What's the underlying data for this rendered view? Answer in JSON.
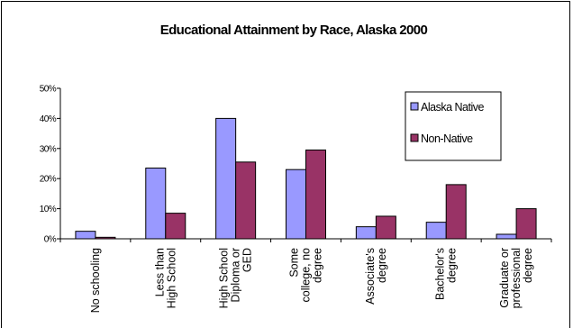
{
  "chart_data": {
    "type": "bar",
    "title": "Educational Attainment by Race, Alaska 2000",
    "xlabel": "",
    "ylabel": "",
    "ylim": [
      0,
      50
    ],
    "yticks": [
      "0%",
      "10%",
      "20%",
      "30%",
      "40%",
      "50%"
    ],
    "grid": false,
    "legend_position": "top-right",
    "categories": [
      [
        "No schooling"
      ],
      [
        "Less than",
        "High School"
      ],
      [
        "High School",
        "Diploma or",
        "GED"
      ],
      [
        "Some",
        "college, no",
        "degree"
      ],
      [
        "Associate's",
        "degree"
      ],
      [
        "Bachelor's",
        "degree"
      ],
      [
        "Graduate or",
        "professional",
        "degree"
      ]
    ],
    "series": [
      {
        "name": "Alaska Native",
        "color": "#9999ff",
        "values": [
          2.5,
          23.5,
          40,
          23,
          4,
          5.5,
          1.5
        ]
      },
      {
        "name": "Non-Native",
        "color": "#993366",
        "values": [
          0.5,
          8.5,
          25.5,
          29.5,
          7.5,
          18,
          10
        ]
      }
    ]
  }
}
